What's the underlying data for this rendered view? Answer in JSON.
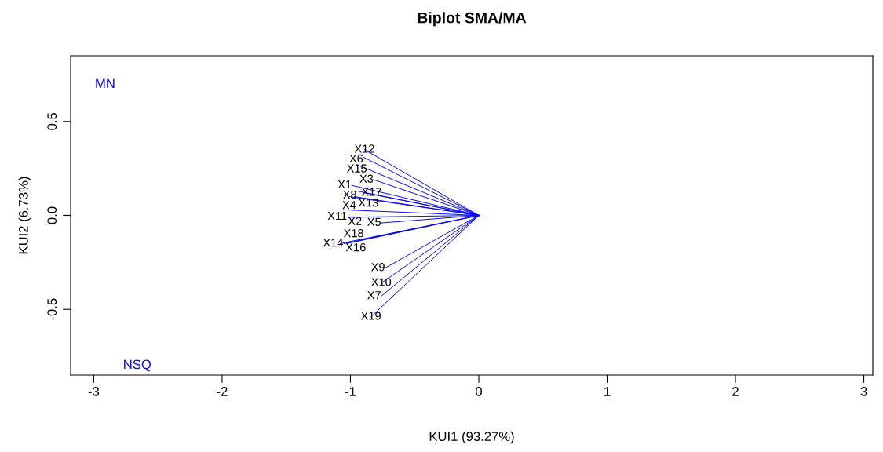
{
  "chart_data": {
    "type": "line",
    "title": "Biplot SMA/MA",
    "xlabel": "KUI1 (93.27%)",
    "ylabel": "KUI2 (6.73%)",
    "xlim": [
      -3.18,
      3.07
    ],
    "ylim": [
      -0.85,
      0.85
    ],
    "xticks": [
      -3,
      -2,
      -1,
      0,
      1,
      2,
      3
    ],
    "yticks": [
      {
        "value": -0.5,
        "label": "-0.5"
      },
      {
        "value": 0,
        "label": "0.0"
      },
      {
        "value": 0.5,
        "label": "0.5"
      }
    ],
    "grid": false,
    "legend": false,
    "marker": "none",
    "line_style": "solid",
    "series": [
      {
        "name": "X12",
        "color": "#0000ff",
        "x": [
          0,
          -0.89
        ],
        "values": [
          0,
          0.35
        ]
      },
      {
        "name": "X6",
        "color": "#0000ff",
        "x": [
          0,
          -0.9
        ],
        "values": [
          0,
          0.31
        ]
      },
      {
        "name": "X15",
        "color": "#0000ff",
        "x": [
          0,
          -0.95
        ],
        "values": [
          0,
          0.27
        ]
      },
      {
        "name": "X3",
        "color": "#0000ff",
        "x": [
          0,
          -0.82
        ],
        "values": [
          0,
          0.19
        ]
      },
      {
        "name": "X1",
        "color": "#0000ff",
        "x": [
          0,
          -0.99
        ],
        "values": [
          0,
          0.16
        ]
      },
      {
        "name": "X8",
        "color": "#0000ff",
        "x": [
          0,
          -0.95
        ],
        "values": [
          0,
          0.13
        ]
      },
      {
        "name": "X17",
        "color": "#0000ff",
        "x": [
          0,
          -0.89
        ],
        "values": [
          0,
          0.12
        ]
      },
      {
        "name": "X4",
        "color": "#0000ff",
        "x": [
          0,
          -1.01
        ],
        "values": [
          0,
          0.1
        ]
      },
      {
        "name": "X13",
        "color": "#0000ff",
        "x": [
          0,
          -0.97
        ],
        "values": [
          0,
          0.1
        ]
      },
      {
        "name": "X11",
        "color": "#0000ff",
        "x": [
          0,
          -1.06
        ],
        "values": [
          0,
          0.03
        ]
      },
      {
        "name": "X2",
        "color": "#0000ff",
        "x": [
          0,
          -1.02
        ],
        "values": [
          0,
          -0.01
        ]
      },
      {
        "name": "X5",
        "color": "#0000ff",
        "x": [
          0,
          -0.76
        ],
        "values": [
          0,
          -0.04
        ]
      },
      {
        "name": "X14",
        "color": "#0000ff",
        "x": [
          0,
          -1.08
        ],
        "values": [
          0,
          -0.15
        ]
      },
      {
        "name": "X16",
        "color": "#0000ff",
        "x": [
          0,
          -1.05
        ],
        "values": [
          0,
          -0.15
        ]
      },
      {
        "name": "X18",
        "color": "#0000ff",
        "x": [
          0,
          -1.03
        ],
        "values": [
          0,
          -0.15
        ]
      },
      {
        "name": "X9",
        "color": "#0000ff",
        "x": [
          0,
          -0.73
        ],
        "values": [
          0,
          -0.28
        ]
      },
      {
        "name": "X10",
        "color": "#0000ff",
        "x": [
          0,
          -0.76
        ],
        "values": [
          0,
          -0.36
        ]
      },
      {
        "name": "X7",
        "color": "#0000ff",
        "x": [
          0,
          -0.76
        ],
        "values": [
          0,
          -0.43
        ]
      },
      {
        "name": "X19",
        "color": "#0000ff",
        "x": [
          0,
          -0.84
        ],
        "values": [
          0,
          -0.54
        ]
      }
    ],
    "annotations": [
      "MN",
      "NSQ"
    ]
  }
}
